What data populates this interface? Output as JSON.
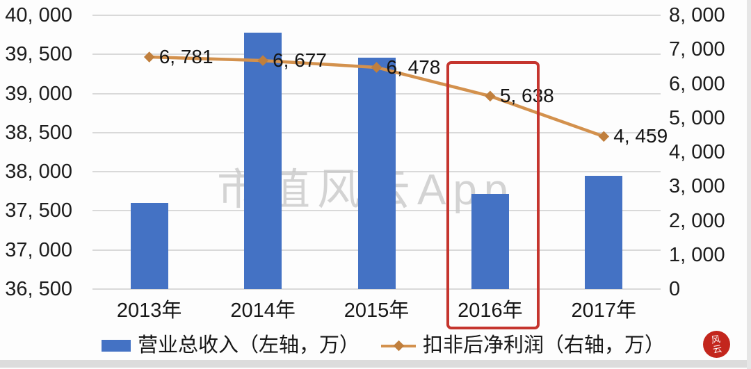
{
  "watermark": "市值风云App",
  "stamp": {
    "text": "风云",
    "color": "#c3261d"
  },
  "highlight": {
    "category": "2016年",
    "color": "#c5352e"
  },
  "colors": {
    "bar_blue": "#4472c4",
    "line_orange": "#d3914d",
    "marker_orange": "#c07f3d",
    "grid_gray": "#d9d9d9",
    "watermark_gray": "#c6c6c6",
    "text_dark": "#1c1c1c"
  },
  "legend": [
    {
      "label": "营业总收入（左轴，万）",
      "type": "bar",
      "color": "#4472c4"
    },
    {
      "label": "扣非后净利润（右轴，万）",
      "type": "line",
      "color": "#d3914d"
    }
  ],
  "chart_data": {
    "type": "bar",
    "subtype": "combo-bar-line-dual-axis",
    "categories": [
      "2013年",
      "2014年",
      "2015年",
      "2016年",
      "2017年"
    ],
    "series": [
      {
        "name": "营业总收入（左轴，万）",
        "type": "bar",
        "axis": "left",
        "color": "#4472c4",
        "values": [
          37600,
          39780,
          39460,
          37720,
          37950
        ]
      },
      {
        "name": "扣非后净利润（右轴，万）",
        "type": "line",
        "axis": "right",
        "color": "#d3914d",
        "values": [
          6781,
          6677,
          6478,
          5638,
          4459
        ],
        "data_labels": [
          "6, 781",
          "6, 677",
          "6, 478",
          "5, 638",
          "4, 459"
        ]
      }
    ],
    "left_axis": {
      "min": 36500,
      "max": 40000,
      "step": 500,
      "tick_labels": [
        "40, 000",
        "39, 500",
        "39, 000",
        "38, 500",
        "38, 000",
        "37, 500",
        "37, 000",
        "36, 500"
      ]
    },
    "right_axis": {
      "min": 0,
      "max": 8000,
      "step": 1000,
      "tick_labels": [
        "8, 000",
        "7, 000",
        "6, 000",
        "5, 000",
        "4, 000",
        "3, 000",
        "2, 000",
        "1, 000",
        "0"
      ]
    },
    "grid": true,
    "legend_position": "bottom",
    "annotation": "red rectangle highlighting 2016年 column"
  }
}
